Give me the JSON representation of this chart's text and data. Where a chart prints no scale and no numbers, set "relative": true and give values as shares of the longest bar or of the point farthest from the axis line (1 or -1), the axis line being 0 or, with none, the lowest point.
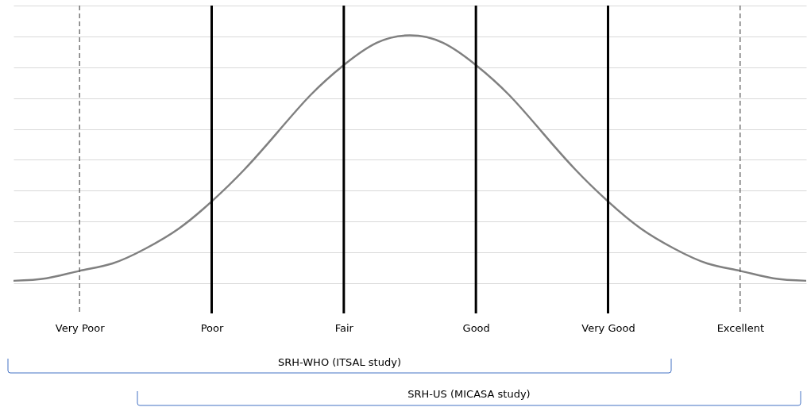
{
  "chart_data": {
    "type": "line",
    "relative": true,
    "grid": "y",
    "tick_labels": "x",
    "marker": "none",
    "categories": [
      null,
      null,
      "Very Poor",
      null,
      null,
      null,
      "Poor",
      null,
      null,
      null,
      "Fair",
      null,
      null,
      null,
      "Good",
      null,
      null,
      null,
      "Very Good",
      null,
      null,
      null,
      "Excellent",
      null,
      null
    ],
    "series": [
      {
        "color": "#808080",
        "values": [
          0.01,
          0.02,
          0.05,
          0.08,
          0.14,
          0.22,
          0.33,
          0.46,
          0.61,
          0.76,
          0.88,
          0.97,
          1,
          0.97,
          0.88,
          0.76,
          0.61,
          0.46,
          0.33,
          0.22,
          0.14,
          0.08,
          0.05,
          0.02,
          0.01
        ]
      }
    ],
    "ref_lines": [
      {
        "axis": "x",
        "value": "Very Poor",
        "color": "#555555",
        "line_style": "dashed"
      },
      {
        "axis": "x",
        "value": "Poor",
        "color": "#000000",
        "line_style": "solid"
      },
      {
        "axis": "x",
        "value": "Fair",
        "color": "#000000",
        "line_style": "solid"
      },
      {
        "axis": "x",
        "value": "Good",
        "color": "#000000",
        "line_style": "solid"
      },
      {
        "axis": "x",
        "value": "Very Good",
        "color": "#000000",
        "line_style": "solid"
      },
      {
        "axis": "x",
        "value": "Excellent",
        "color": "#555555",
        "line_style": "dashed"
      }
    ],
    "annotations": [
      "SRH-WHO (ITSAL study)",
      "SRH-US (MICASA study)"
    ]
  }
}
